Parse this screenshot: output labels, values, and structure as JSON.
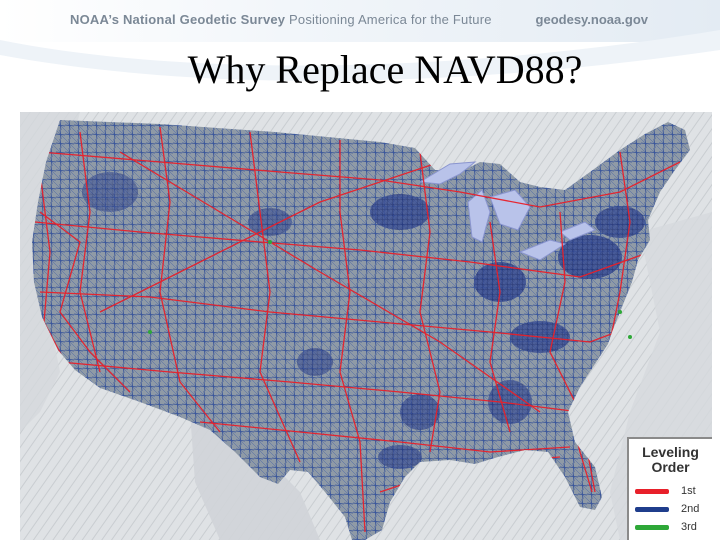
{
  "header": {
    "org_prefix": "NOAA’s",
    "org_name": "National Geodetic Survey",
    "tagline": "Positioning America for the Future",
    "url": "geodesy.noaa.gov"
  },
  "slide": {
    "title": "Why Replace NAVD88?"
  },
  "map": {
    "colors": {
      "land": "#8f9aa6",
      "water": "#c8ccd0",
      "great_lakes": "#b9c3ea",
      "first_order": "#e8202a",
      "second_order": "#1f3d8c",
      "third_order": "#2ea838"
    }
  },
  "legend": {
    "title": "Leveling Order",
    "items": [
      {
        "label": "1st",
        "color": "#e8202a"
      },
      {
        "label": "2nd",
        "color": "#1f3d8c"
      },
      {
        "label": "3rd",
        "color": "#2ea838"
      }
    ]
  }
}
